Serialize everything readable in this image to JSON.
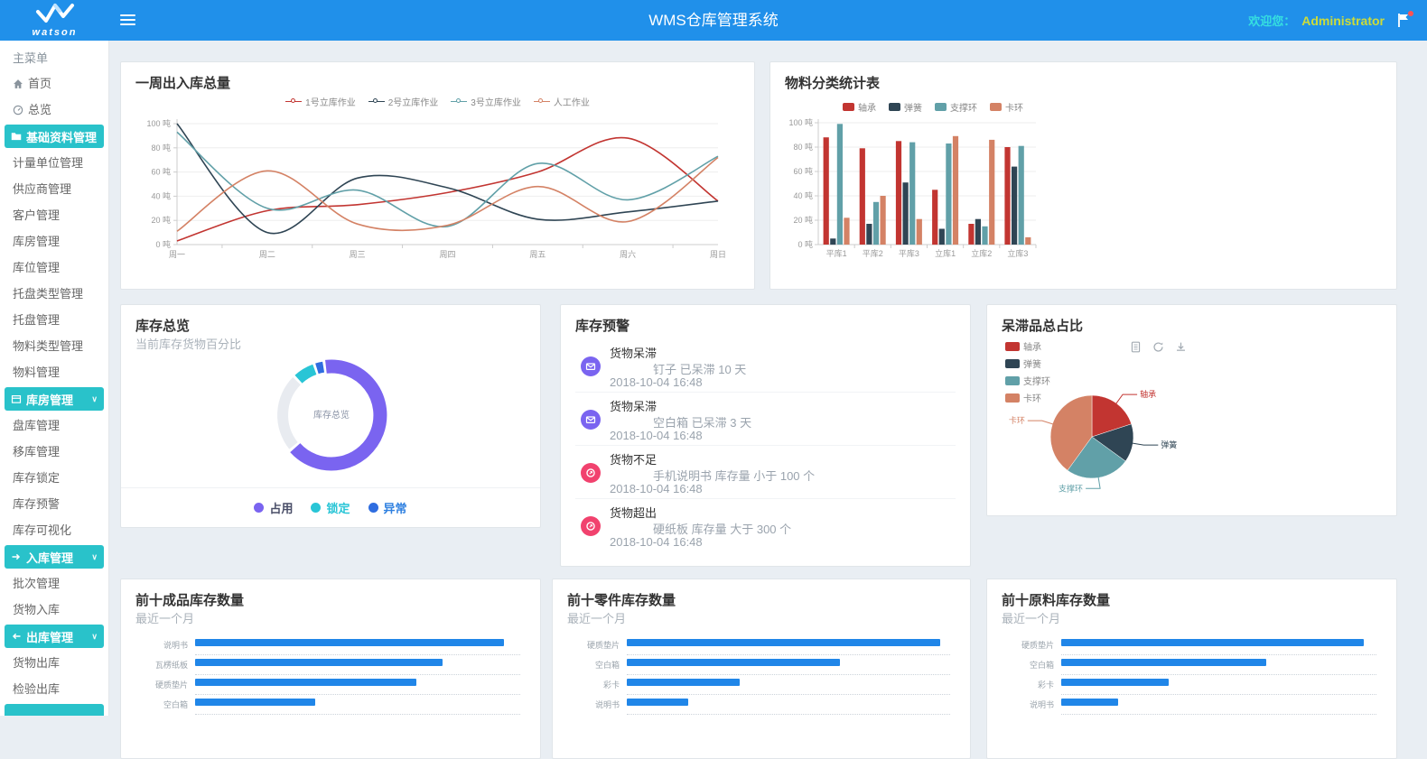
{
  "header": {
    "logo_text": "watson",
    "title": "WMS仓库管理系统",
    "welcome_label": "欢迎您：",
    "username": "Administrator"
  },
  "sidebar": {
    "caption": "主菜单",
    "items": [
      {
        "label": "首页",
        "icon": "home-icon",
        "type": "link"
      },
      {
        "label": "总览",
        "icon": "gauge-icon",
        "type": "link"
      },
      {
        "label": "基础资料管理",
        "icon": "folder-icon",
        "type": "group",
        "selected": true
      },
      {
        "label": "计量单位管理",
        "type": "link"
      },
      {
        "label": "供应商管理",
        "type": "link"
      },
      {
        "label": "客户管理",
        "type": "link"
      },
      {
        "label": "库房管理",
        "type": "link"
      },
      {
        "label": "库位管理",
        "type": "link"
      },
      {
        "label": "托盘类型管理",
        "type": "link"
      },
      {
        "label": "托盘管理",
        "type": "link"
      },
      {
        "label": "物料类型管理",
        "type": "link"
      },
      {
        "label": "物料管理",
        "type": "link"
      },
      {
        "label": "库房管理",
        "icon": "box-icon",
        "type": "group",
        "chevron": true
      },
      {
        "label": "盘库管理",
        "type": "link"
      },
      {
        "label": "移库管理",
        "type": "link"
      },
      {
        "label": "库存锁定",
        "type": "link"
      },
      {
        "label": "库存预警",
        "type": "link"
      },
      {
        "label": "库存可视化",
        "type": "link"
      },
      {
        "label": "入库管理",
        "icon": "arrow-right-icon",
        "type": "group",
        "chevron": true
      },
      {
        "label": "批次管理",
        "type": "link"
      },
      {
        "label": "货物入库",
        "type": "link"
      },
      {
        "label": "出库管理",
        "icon": "arrow-left-icon",
        "type": "group",
        "chevron": true
      },
      {
        "label": "货物出库",
        "type": "link"
      },
      {
        "label": "检验出库",
        "type": "link"
      },
      {
        "label": "",
        "type": "group-partial"
      }
    ]
  },
  "cards": {
    "weekly": {
      "title": "一周出入库总量"
    },
    "material": {
      "title": "物料分类统计表"
    },
    "overview": {
      "title": "库存总览",
      "subtitle": "当前库存货物百分比",
      "center_label": "库存总览"
    },
    "warnings": {
      "title": "库存预警",
      "items": [
        {
          "title": "货物呆滞",
          "icon": "mail-icon",
          "icon_color": "#7a64f0",
          "detail": "钉子 已呆滞 10 天",
          "time": "2018-10-04 16:48"
        },
        {
          "title": "货物呆滞",
          "icon": "mail-icon",
          "icon_color": "#7a64f0",
          "detail": "空白箱 已呆滞 3 天",
          "time": "2018-10-04 16:48"
        },
        {
          "title": "货物不足",
          "icon": "alert-icon",
          "icon_color": "#f1426e",
          "detail": "手机说明书 库存量 小于 100 个",
          "time": "2018-10-04 16:48"
        },
        {
          "title": "货物超出",
          "icon": "alert-icon",
          "icon_color": "#f1426e",
          "detail": "硬纸板 库存量 大于 300 个",
          "time": "2018-10-04 16:48"
        }
      ]
    },
    "stagnant": {
      "title": "呆滞品总占比",
      "toolbox": [
        "data-view-icon",
        "refresh-icon",
        "download-icon"
      ]
    },
    "top_finished": {
      "title": "前十成品库存数量",
      "subtitle": "最近一个月"
    },
    "top_parts": {
      "title": "前十零件库存数量",
      "subtitle": "最近一个月"
    },
    "top_raw": {
      "title": "前十原料库存数量",
      "subtitle": "最近一个月"
    }
  },
  "chart_data": [
    {
      "id": "weekly",
      "type": "line",
      "title": "一周出入库总量",
      "categories": [
        "周一",
        "周二",
        "周三",
        "周四",
        "周五",
        "周六",
        "周日"
      ],
      "unit": "吨",
      "ylim": [
        0,
        100
      ],
      "ytick_step": 20,
      "grid": true,
      "legend_position": "top",
      "series": [
        {
          "name": "1号立库作业",
          "color": "#c23531",
          "values": [
            3,
            28,
            33,
            43,
            60,
            88,
            36
          ]
        },
        {
          "name": "2号立库作业",
          "color": "#2f4554",
          "values": [
            100,
            10,
            55,
            47,
            21,
            27,
            36
          ]
        },
        {
          "name": "3号立库作业",
          "color": "#61a0a8",
          "values": [
            93,
            30,
            45,
            15,
            67,
            37,
            73
          ]
        },
        {
          "name": "人工作业",
          "color": "#d48265",
          "values": [
            11,
            61,
            17,
            16,
            48,
            19,
            72
          ]
        }
      ]
    },
    {
      "id": "material",
      "type": "bar",
      "title": "物料分类统计表",
      "categories": [
        "平库1",
        "平库2",
        "平库3",
        "立库1",
        "立库2",
        "立库3"
      ],
      "unit": "吨",
      "ylim": [
        0,
        100
      ],
      "ytick_step": 20,
      "grid": true,
      "legend_position": "top",
      "series": [
        {
          "name": "轴承",
          "color": "#c23531",
          "values": [
            88,
            79,
            85,
            45,
            17,
            80
          ]
        },
        {
          "name": "弹簧",
          "color": "#2f4554",
          "values": [
            5,
            17,
            51,
            13,
            21,
            64
          ]
        },
        {
          "name": "支撑环",
          "color": "#61a0a8",
          "values": [
            99,
            35,
            84,
            83,
            15,
            81
          ]
        },
        {
          "name": "卡环",
          "color": "#d48265",
          "values": [
            22,
            40,
            21,
            89,
            86,
            6
          ]
        }
      ]
    },
    {
      "id": "overview",
      "type": "donut",
      "title": "库存总览",
      "center_label": "库存总览",
      "legend_position": "bottom",
      "segments": [
        {
          "name": "占用",
          "color": "#7a64f0",
          "pct": 66,
          "text_color": "#4a4e68"
        },
        {
          "name": "",
          "color": "#e8ebf0",
          "pct": 24
        },
        {
          "name": "锁定",
          "color": "#29c5d6",
          "pct": 7,
          "text_color": "#29c5d6"
        },
        {
          "name": "异常",
          "color": "#2f6de0",
          "pct": 3,
          "text_color": "#2f80e0"
        }
      ],
      "legend": [
        "占用",
        "锁定",
        "异常"
      ]
    },
    {
      "id": "stagnant",
      "type": "pie",
      "title": "呆滞品总占比",
      "legend_position": "top-left",
      "slices": [
        {
          "name": "轴承",
          "color": "#c23531",
          "pct": 20,
          "label_side": "right"
        },
        {
          "name": "弹簧",
          "color": "#2f4554",
          "pct": 15,
          "label_side": "right"
        },
        {
          "name": "支撑环",
          "color": "#61a0a8",
          "pct": 25,
          "label_side": "left"
        },
        {
          "name": "卡环",
          "color": "#d48265",
          "pct": 40,
          "label_side": "left"
        }
      ]
    },
    {
      "id": "top_finished",
      "type": "bar",
      "orientation": "horizontal",
      "title": "前十成品库存数量",
      "subtitle": "最近一个月",
      "color": "#2086e8",
      "categories": [
        "说明书",
        "瓦楞纸板",
        "硬质垫片",
        "空白箱"
      ],
      "values_pct": [
        95,
        76,
        68,
        37
      ]
    },
    {
      "id": "top_parts",
      "type": "bar",
      "orientation": "horizontal",
      "title": "前十零件库存数量",
      "subtitle": "最近一个月",
      "color": "#2086e8",
      "categories": [
        "硬质垫片",
        "空白箱",
        "彩卡",
        "说明书"
      ],
      "values_pct": [
        97,
        66,
        35,
        19
      ]
    },
    {
      "id": "top_raw",
      "type": "bar",
      "orientation": "horizontal",
      "title": "前十原料库存数量",
      "subtitle": "最近一个月",
      "color": "#2086e8",
      "categories": [
        "硬质垫片",
        "空白箱",
        "彩卡",
        "说明书"
      ],
      "values_pct": [
        96,
        65,
        34,
        18
      ]
    }
  ]
}
